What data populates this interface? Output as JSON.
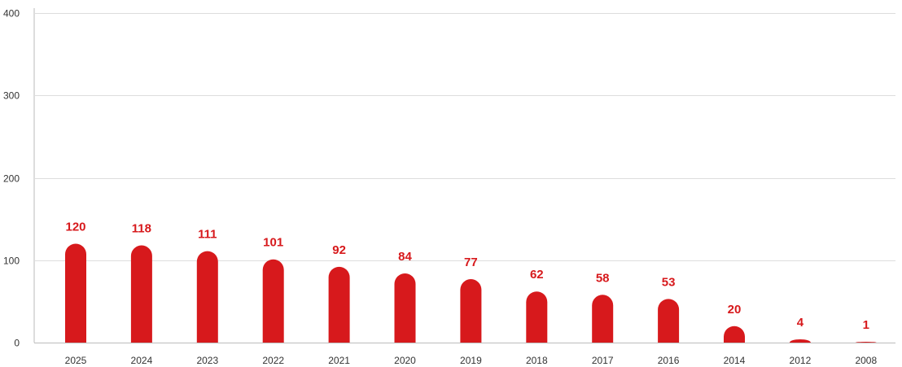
{
  "chart_data": {
    "type": "bar",
    "title": "",
    "xlabel": "",
    "ylabel": "",
    "categories": [
      "2025",
      "2024",
      "2023",
      "2022",
      "2021",
      "2020",
      "2019",
      "2018",
      "2017",
      "2016",
      "2014",
      "2012",
      "2008"
    ],
    "values": [
      120,
      118,
      111,
      101,
      92,
      84,
      77,
      62,
      58,
      53,
      20,
      4,
      1
    ],
    "ylim": [
      0,
      400
    ],
    "yticks": [
      0,
      100,
      200,
      300,
      400
    ],
    "grid": true,
    "legend": "none",
    "bar_color": "#d7191c",
    "label_color": "#d7191c",
    "grid_color": "#dddddd",
    "axis_color": "#bbbbbb"
  }
}
